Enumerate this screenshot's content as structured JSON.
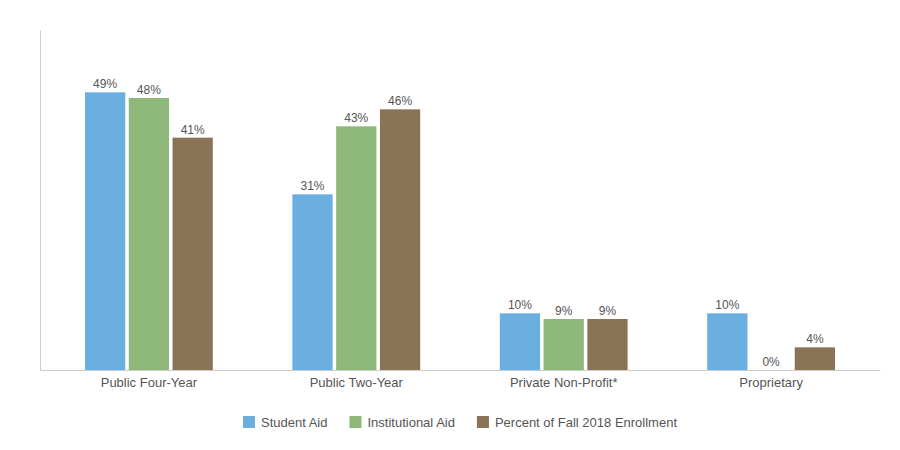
{
  "chart_data": {
    "type": "bar",
    "categories": [
      "Public Four-Year",
      "Public Two-Year",
      "Private Non-Profit*",
      "Proprietary"
    ],
    "series": [
      {
        "name": "Student Aid",
        "color": "#6aafe0",
        "values": [
          49,
          31,
          10,
          10
        ],
        "value_labels": [
          "49%",
          "31%",
          "10%",
          "10%"
        ]
      },
      {
        "name": "Institutional Aid",
        "color": "#8db87a",
        "values": [
          48,
          43,
          9,
          0
        ],
        "value_labels": [
          "48%",
          "43%",
          "9%",
          "0%"
        ]
      },
      {
        "name": "Percent of Fall 2018 Enrollment",
        "color": "#8b7355",
        "values": [
          41,
          46,
          9,
          4
        ],
        "value_labels": [
          "41%",
          "46%",
          "9%",
          "4%"
        ]
      }
    ],
    "ylim": [
      0,
      60
    ],
    "data_labels": true,
    "tick_labels": "x",
    "grid": false,
    "legend": "bottom"
  }
}
